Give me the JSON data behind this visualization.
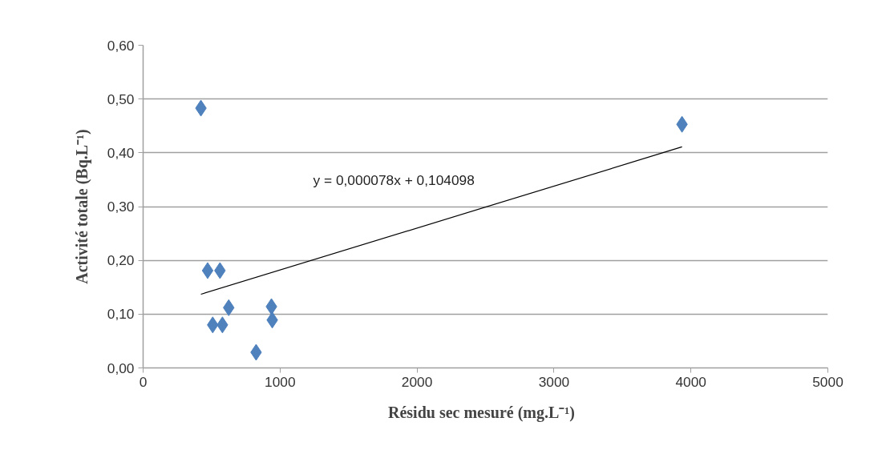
{
  "chart_data": {
    "type": "scatter",
    "xlabel": "Résidu  sec mesuré  (mg.L⁻¹)",
    "ylabel": "Activité totale (Bq.L⁻¹)",
    "series": [
      {
        "color": "#4f81bd",
        "marker": "diamond",
        "x": [
          422,
          471,
          561,
          625,
          508,
          579,
          937,
          943,
          825,
          3935
        ],
        "values": [
          0.483,
          0.181,
          0.181,
          0.112,
          0.08,
          0.08,
          0.114,
          0.089,
          0.029,
          0.453
        ]
      },
      {
        "type": "line",
        "color": "#000000",
        "line_style": "solid",
        "x": [
          422,
          3935
        ],
        "values": [
          0.137,
          0.411
        ]
      }
    ],
    "annotations": [
      "y = 0,000078x + 0,104098"
    ],
    "xlim": [
      0,
      5000
    ],
    "xticks": [
      0,
      1000,
      2000,
      3000,
      4000,
      5000
    ],
    "ylim": [
      0,
      0.6
    ],
    "yticks": [
      {
        "value": 0,
        "label": "0,00"
      },
      {
        "value": 0.1,
        "label": "0,10"
      },
      {
        "value": 0.2,
        "label": "0,20"
      },
      {
        "value": 0.3,
        "label": "0,30"
      },
      {
        "value": 0.4,
        "label": "0,40"
      },
      {
        "value": 0.5,
        "label": "0,50"
      },
      {
        "value": 0.6,
        "label": "0,60"
      }
    ],
    "grid": "y"
  }
}
